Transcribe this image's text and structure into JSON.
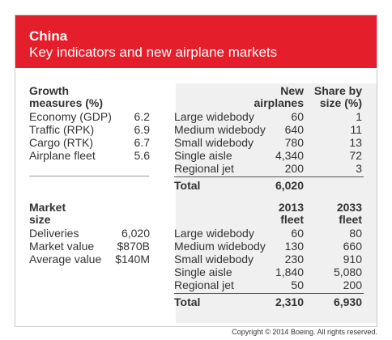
{
  "header": {
    "title": "China",
    "subtitle": "Key indicators and new airplane markets"
  },
  "growth": {
    "heading_line1": "Growth",
    "heading_line2": "measures (%)",
    "rows": [
      {
        "label": "Economy (GDP)",
        "value": "6.2"
      },
      {
        "label": "Traffic (RPK)",
        "value": "6.9"
      },
      {
        "label": "Cargo (RTK)",
        "value": "6.7"
      },
      {
        "label": "Airplane fleet",
        "value": "5.6"
      }
    ]
  },
  "market": {
    "heading_line1": "Market",
    "heading_line2": "size",
    "rows": [
      {
        "label": "Deliveries",
        "value": "6,020"
      },
      {
        "label": "Market value",
        "value": "$870B"
      },
      {
        "label": "Average value",
        "value": "$140M"
      }
    ]
  },
  "new_airplanes": {
    "col1_line1": "New",
    "col1_line2": "airplanes",
    "col2_line1": "Share by",
    "col2_line2": "size (%)",
    "rows": [
      {
        "label": "Large widebody",
        "new": "60",
        "share": "1"
      },
      {
        "label": "Medium widebody",
        "new": "640",
        "share": "11"
      },
      {
        "label": "Small widebody",
        "new": "780",
        "share": "13"
      },
      {
        "label": "Single aisle",
        "new": "4,340",
        "share": "72"
      },
      {
        "label": "Regional jet",
        "new": "200",
        "share": "3"
      }
    ],
    "total_label": "Total",
    "total_new": "6,020"
  },
  "fleet": {
    "col1_line1": "2013",
    "col1_line2": "fleet",
    "col2_line1": "2033",
    "col2_line2": "fleet",
    "rows": [
      {
        "label": "Large widebody",
        "f2013": "60",
        "f2033": "80"
      },
      {
        "label": "Medium widebody",
        "f2013": "130",
        "f2033": "660"
      },
      {
        "label": "Small widebody",
        "f2013": "230",
        "f2033": "910"
      },
      {
        "label": "Single aisle",
        "f2013": "1,840",
        "f2033": "5,080"
      },
      {
        "label": "Regional jet",
        "f2013": "50",
        "f2033": "200"
      }
    ],
    "total_label": "Total",
    "total_2013": "2,310",
    "total_2033": "6,930"
  },
  "footer": {
    "copyright": "Copyright © 2014 Boeing. All rights reserved."
  }
}
